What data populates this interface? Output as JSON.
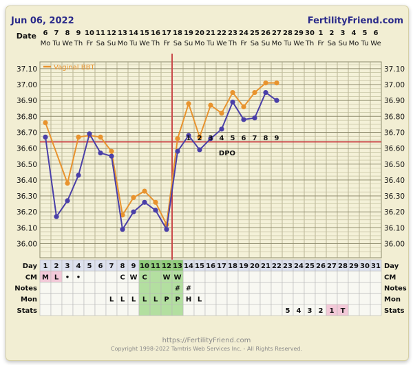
{
  "header": {
    "start_date": "Jun 06, 2022",
    "site": "FertilityFriend.com",
    "date_label": "Date",
    "dates": [
      "6",
      "7",
      "8",
      "9",
      "10",
      "11",
      "12",
      "13",
      "14",
      "15",
      "16",
      "17",
      "18",
      "19",
      "20",
      "21",
      "22",
      "23",
      "24",
      "25",
      "26",
      "27",
      "28",
      "29",
      "30",
      "1",
      "2",
      "3",
      "4",
      "5",
      "6"
    ],
    "weekdays": [
      "Mo",
      "Tu",
      "We",
      "Th",
      "Fr",
      "Sa",
      "Su",
      "Mo",
      "Tu",
      "We",
      "Th",
      "Fr",
      "Sa",
      "Su",
      "Mo",
      "Tu",
      "We",
      "Th",
      "Fr",
      "Sa",
      "Su",
      "Mo",
      "Tu",
      "We",
      "Th",
      "Fr",
      "Sa",
      "Su",
      "Mo",
      "Tu",
      "We"
    ]
  },
  "chart_data": {
    "type": "line",
    "legend": "Vaginal BBT",
    "legend_position": "top-left",
    "ylim": [
      35.95,
      37.15
    ],
    "yticks": [
      "37.10",
      "37.00",
      "36.90",
      "36.80",
      "36.70",
      "36.60",
      "36.50",
      "36.40",
      "36.30",
      "36.20",
      "36.10",
      "36.00"
    ],
    "grid": true,
    "x": [
      1,
      2,
      3,
      4,
      5,
      6,
      7,
      8,
      9,
      10,
      11,
      12,
      13,
      14,
      15,
      16,
      17,
      18,
      19,
      20,
      21,
      22
    ],
    "series": [
      {
        "name": "Vaginal BBT",
        "color": "#e8932e",
        "values": [
          36.76,
          null,
          36.38,
          36.67,
          36.68,
          36.67,
          36.58,
          36.18,
          36.29,
          36.33,
          36.26,
          36.12,
          36.66,
          36.88,
          36.67,
          36.87,
          36.82,
          36.95,
          36.86,
          36.95,
          37.01,
          37.01
        ]
      },
      {
        "color": "#4a3fa8",
        "values": [
          36.67,
          36.17,
          36.27,
          36.43,
          36.69,
          36.57,
          36.55,
          36.09,
          36.2,
          36.26,
          36.21,
          36.09,
          36.58,
          36.68,
          36.59,
          36.66,
          36.72,
          36.89,
          36.78,
          36.79,
          36.95,
          36.9
        ]
      }
    ],
    "coverline": 36.64,
    "coverline_color": "#c94a4a",
    "ovulation_day": 13,
    "dpo_label": "DPO",
    "dpo_numbers": [
      {
        "day": 14,
        "label": "1"
      },
      {
        "day": 15,
        "label": "2"
      },
      {
        "day": 16,
        "label": "3"
      },
      {
        "day": 17,
        "label": "4"
      },
      {
        "day": 18,
        "label": "5"
      },
      {
        "day": 19,
        "label": "6"
      },
      {
        "day": 20,
        "label": "7"
      },
      {
        "day": 21,
        "label": "8"
      },
      {
        "day": 22,
        "label": "9"
      }
    ]
  },
  "table": {
    "row_labels": [
      "Day",
      "CM",
      "Notes",
      "Mon",
      "Stats"
    ],
    "days": [
      "1",
      "2",
      "3",
      "4",
      "5",
      "6",
      "7",
      "8",
      "9",
      "10",
      "11",
      "12",
      "13",
      "14",
      "15",
      "16",
      "17",
      "18",
      "19",
      "20",
      "21",
      "22",
      "23",
      "24",
      "25",
      "26",
      "27",
      "28",
      "29",
      "30",
      "31"
    ],
    "fertile_days": [
      10,
      11,
      12,
      13
    ],
    "cm": [
      {
        "day": 1,
        "text": "M"
      },
      {
        "day": 2,
        "text": "L"
      },
      {
        "day": 3,
        "text": "•"
      },
      {
        "day": 4,
        "text": "•"
      },
      {
        "day": 8,
        "text": "C"
      },
      {
        "day": 9,
        "text": "W"
      },
      {
        "day": 10,
        "text": "C"
      },
      {
        "day": 12,
        "text": "W"
      },
      {
        "day": 13,
        "text": "W"
      }
    ],
    "notes": [
      {
        "day": 13,
        "text": "#"
      },
      {
        "day": 14,
        "text": "#"
      }
    ],
    "mon": [
      {
        "day": 7,
        "text": "L"
      },
      {
        "day": 8,
        "text": "L"
      },
      {
        "day": 9,
        "text": "L"
      },
      {
        "day": 10,
        "text": "L"
      },
      {
        "day": 11,
        "text": "L"
      },
      {
        "day": 12,
        "text": "P"
      },
      {
        "day": 13,
        "text": "P"
      },
      {
        "day": 14,
        "text": "H"
      },
      {
        "day": 15,
        "text": "L"
      }
    ],
    "stats": [
      {
        "day": 23,
        "text": "5"
      },
      {
        "day": 24,
        "text": "4"
      },
      {
        "day": 25,
        "text": "3"
      },
      {
        "day": 26,
        "text": "2"
      },
      {
        "day": 27,
        "text": "1"
      },
      {
        "day": 28,
        "text": "T"
      }
    ],
    "colors": {
      "menses": "#f3c9d8",
      "fertile": "#b3dfa0",
      "fertile_dark": "#8fcd79",
      "today": "#f3c9d8",
      "day_bg": "#dde1ee"
    }
  },
  "footer": {
    "url": "https://FertilityFriend.com",
    "copyright": "Copyright 1998-2022 Tamtris Web Services Inc. - All Rights Reserved."
  }
}
